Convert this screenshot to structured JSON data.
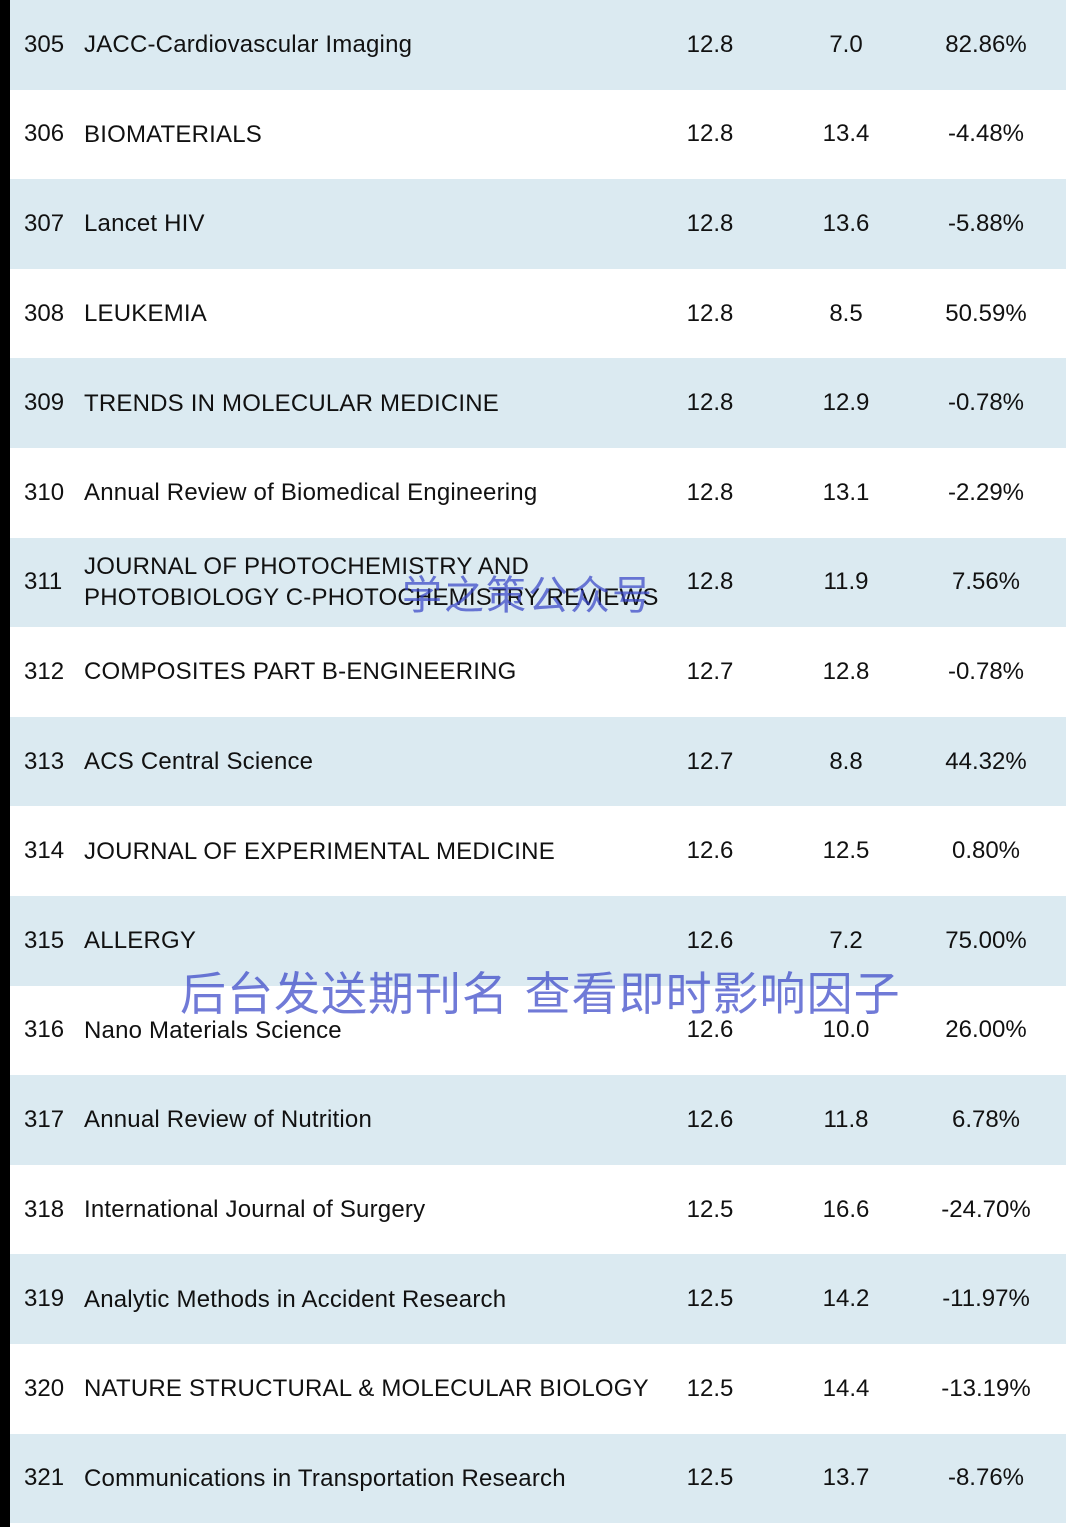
{
  "table": {
    "rows": [
      {
        "rank": "305",
        "name": "JACC-Cardiovascular Imaging",
        "if_current": "12.8",
        "if_previous": "7.0",
        "change": "82.86%"
      },
      {
        "rank": "306",
        "name": "BIOMATERIALS",
        "if_current": "12.8",
        "if_previous": "13.4",
        "change": "-4.48%"
      },
      {
        "rank": "307",
        "name": "Lancet HIV",
        "if_current": "12.8",
        "if_previous": "13.6",
        "change": "-5.88%"
      },
      {
        "rank": "308",
        "name": "LEUKEMIA",
        "if_current": "12.8",
        "if_previous": "8.5",
        "change": "50.59%"
      },
      {
        "rank": "309",
        "name": "TRENDS IN MOLECULAR MEDICINE",
        "if_current": "12.8",
        "if_previous": "12.9",
        "change": "-0.78%"
      },
      {
        "rank": "310",
        "name": "Annual Review of Biomedical Engineering",
        "if_current": "12.8",
        "if_previous": "13.1",
        "change": "-2.29%"
      },
      {
        "rank": "311",
        "name": "JOURNAL OF PHOTOCHEMISTRY AND PHOTOBIOLOGY C-PHOTOCHEMISTRY REVIEWS",
        "if_current": "12.8",
        "if_previous": "11.9",
        "change": "7.56%"
      },
      {
        "rank": "312",
        "name": "COMPOSITES PART B-ENGINEERING",
        "if_current": "12.7",
        "if_previous": "12.8",
        "change": "-0.78%"
      },
      {
        "rank": "313",
        "name": "ACS Central Science",
        "if_current": "12.7",
        "if_previous": "8.8",
        "change": "44.32%"
      },
      {
        "rank": "314",
        "name": "JOURNAL OF EXPERIMENTAL MEDICINE",
        "if_current": "12.6",
        "if_previous": "12.5",
        "change": "0.80%"
      },
      {
        "rank": "315",
        "name": "ALLERGY",
        "if_current": "12.6",
        "if_previous": "7.2",
        "change": "75.00%"
      },
      {
        "rank": "316",
        "name": "Nano Materials Science",
        "if_current": "12.6",
        "if_previous": "10.0",
        "change": "26.00%"
      },
      {
        "rank": "317",
        "name": "Annual Review of Nutrition",
        "if_current": "12.6",
        "if_previous": "11.8",
        "change": "6.78%"
      },
      {
        "rank": "318",
        "name": "International Journal of Surgery",
        "if_current": "12.5",
        "if_previous": "16.6",
        "change": "-24.70%"
      },
      {
        "rank": "319",
        "name": "Analytic Methods in Accident Research",
        "if_current": "12.5",
        "if_previous": "14.2",
        "change": "-11.97%"
      },
      {
        "rank": "320",
        "name": "NATURE STRUCTURAL & MOLECULAR BIOLOGY",
        "if_current": "12.5",
        "if_previous": "14.4",
        "change": "-13.19%"
      },
      {
        "rank": "321",
        "name": "Communications in Transportation Research",
        "if_current": "12.5",
        "if_previous": "13.7",
        "change": "-8.76%"
      }
    ]
  },
  "watermarks": {
    "account": "学之策公众号",
    "instruction": "后台发送期刊名 查看即时影响因子"
  },
  "colors": {
    "shaded_row": "#dbeaf1",
    "watermark": "#3a47c8"
  }
}
